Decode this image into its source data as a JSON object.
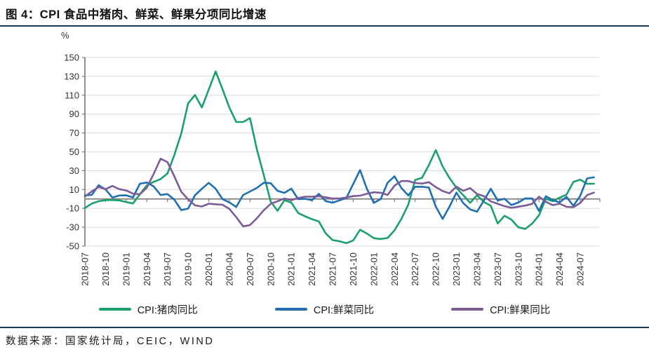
{
  "header": {
    "title": "图 4：CPI 食品中猪肉、鲜菜、鲜果分项同比增速"
  },
  "footer": {
    "source": "数据来源：国家统计局，CEIC，WIND"
  },
  "colors": {
    "rule": "#17375e",
    "axis": "#7f7f7f",
    "grid": "#dcdcdc",
    "tick_text": "#333333",
    "pork": "#1ba06c",
    "vegetable": "#1f6fb2",
    "fruit": "#7c5c96"
  },
  "chart_data": {
    "type": "line",
    "title": "CPI 食品中猪肉、鲜菜、鲜果分项同比增速",
    "unit_label": "%",
    "ylabel": "%",
    "xlabel": "",
    "ylim": [
      -50,
      150
    ],
    "ytick_interval": 20,
    "x_tick_every": 3,
    "grid": "horizontal",
    "legend_position": "bottom",
    "months": [
      "2018-07",
      "2018-08",
      "2018-09",
      "2018-10",
      "2018-11",
      "2018-12",
      "2019-01",
      "2019-02",
      "2019-03",
      "2019-04",
      "2019-05",
      "2019-06",
      "2019-07",
      "2019-08",
      "2019-09",
      "2019-10",
      "2019-11",
      "2019-12",
      "2020-01",
      "2020-02",
      "2020-03",
      "2020-04",
      "2020-05",
      "2020-06",
      "2020-07",
      "2020-08",
      "2020-09",
      "2020-10",
      "2020-11",
      "2020-12",
      "2021-01",
      "2021-02",
      "2021-03",
      "2021-04",
      "2021-05",
      "2021-06",
      "2021-07",
      "2021-08",
      "2021-09",
      "2021-10",
      "2021-11",
      "2021-12",
      "2022-01",
      "2022-02",
      "2022-03",
      "2022-04",
      "2022-05",
      "2022-06",
      "2022-07",
      "2022-08",
      "2022-09",
      "2022-10",
      "2022-11",
      "2022-12",
      "2023-01",
      "2023-02",
      "2023-03",
      "2023-04",
      "2023-05",
      "2023-06",
      "2023-07",
      "2023-08",
      "2023-09",
      "2023-10",
      "2023-11",
      "2023-12",
      "2024-01",
      "2024-02",
      "2024-03",
      "2024-04",
      "2024-05",
      "2024-06",
      "2024-07",
      "2024-08",
      "2024-09"
    ],
    "series": [
      {
        "name": "CPI:猪肉同比",
        "color": "#1ba06c",
        "values": [
          -9.6,
          -4.9,
          -2.4,
          -1.3,
          -1.1,
          -1.5,
          -3.2,
          -4.8,
          5.1,
          14.4,
          18.2,
          21.1,
          27.0,
          46.7,
          69.3,
          101.3,
          110.2,
          97.0,
          116.0,
          135.2,
          116.4,
          96.9,
          81.7,
          81.6,
          85.7,
          52.6,
          25.5,
          -2.8,
          -12.5,
          -1.3,
          -3.9,
          -14.9,
          -18.4,
          -21.4,
          -23.8,
          -36.5,
          -43.5,
          -44.9,
          -46.9,
          -44.0,
          -32.7,
          -36.7,
          -41.6,
          -42.5,
          -41.4,
          -33.3,
          -21.1,
          -6.0,
          20.2,
          22.4,
          36.0,
          51.8,
          34.4,
          22.2,
          11.8,
          3.9,
          -4.1,
          4.0,
          -3.2,
          -7.2,
          -26.0,
          -17.9,
          -22.0,
          -30.1,
          -31.8,
          -26.1,
          -17.3,
          0.2,
          -2.4,
          1.4,
          4.6,
          18.1,
          20.4,
          16.1,
          16.2
        ]
      },
      {
        "name": "CPI:鲜菜同比",
        "color": "#1f6fb2",
        "values": [
          3.8,
          4.3,
          14.6,
          10.1,
          1.5,
          3.7,
          3.8,
          1.7,
          16.2,
          17.4,
          13.3,
          4.2,
          5.2,
          -0.8,
          -11.8,
          -10.2,
          3.9,
          10.8,
          17.1,
          10.9,
          -0.1,
          -3.7,
          -8.5,
          4.2,
          7.9,
          11.7,
          17.2,
          16.7,
          8.6,
          6.5,
          10.9,
          -0.2,
          0.2,
          -1.3,
          5.4,
          -2.3,
          -4.0,
          -1.5,
          1.0,
          15.9,
          30.6,
          10.6,
          -4.1,
          -0.1,
          17.2,
          24.0,
          11.6,
          3.7,
          12.9,
          13.0,
          12.1,
          -8.1,
          -21.2,
          -8.0,
          6.7,
          -4.4,
          -11.1,
          -13.5,
          -1.7,
          10.8,
          -1.5,
          0.2,
          -6.4,
          -3.8,
          0.6,
          0.5,
          -12.7,
          2.9,
          -1.3,
          -3.7,
          2.3,
          -7.3,
          3.3,
          21.8,
          22.9
        ]
      },
      {
        "name": "CPI:鲜果同比",
        "color": "#7c5c96",
        "values": [
          2.5,
          8.0,
          12.6,
          10.4,
          13.8,
          10.4,
          9.0,
          5.6,
          5.0,
          11.9,
          26.7,
          42.7,
          39.1,
          24.0,
          7.7,
          -0.3,
          -6.8,
          -8.0,
          -5.0,
          -5.6,
          -6.1,
          -10.5,
          -19.3,
          -29.0,
          -27.7,
          -20.5,
          -12.0,
          -5.2,
          -2.4,
          0.5,
          -1.3,
          1.0,
          2.4,
          2.4,
          2.9,
          1.8,
          0.5,
          0.5,
          1.5,
          3.0,
          3.5,
          5.5,
          7.1,
          6.6,
          4.3,
          14.1,
          19.0,
          19.0,
          16.9,
          16.3,
          17.8,
          12.6,
          8.4,
          6.0,
          13.1,
          8.6,
          11.5,
          5.3,
          3.0,
          -2.6,
          -5.1,
          -7.6,
          -9.4,
          -8.2,
          -7.0,
          -5.2,
          2.4,
          -3.0,
          -6.6,
          -5.0,
          -8.3,
          -8.7,
          -4.3,
          4.1,
          6.7
        ]
      }
    ]
  }
}
